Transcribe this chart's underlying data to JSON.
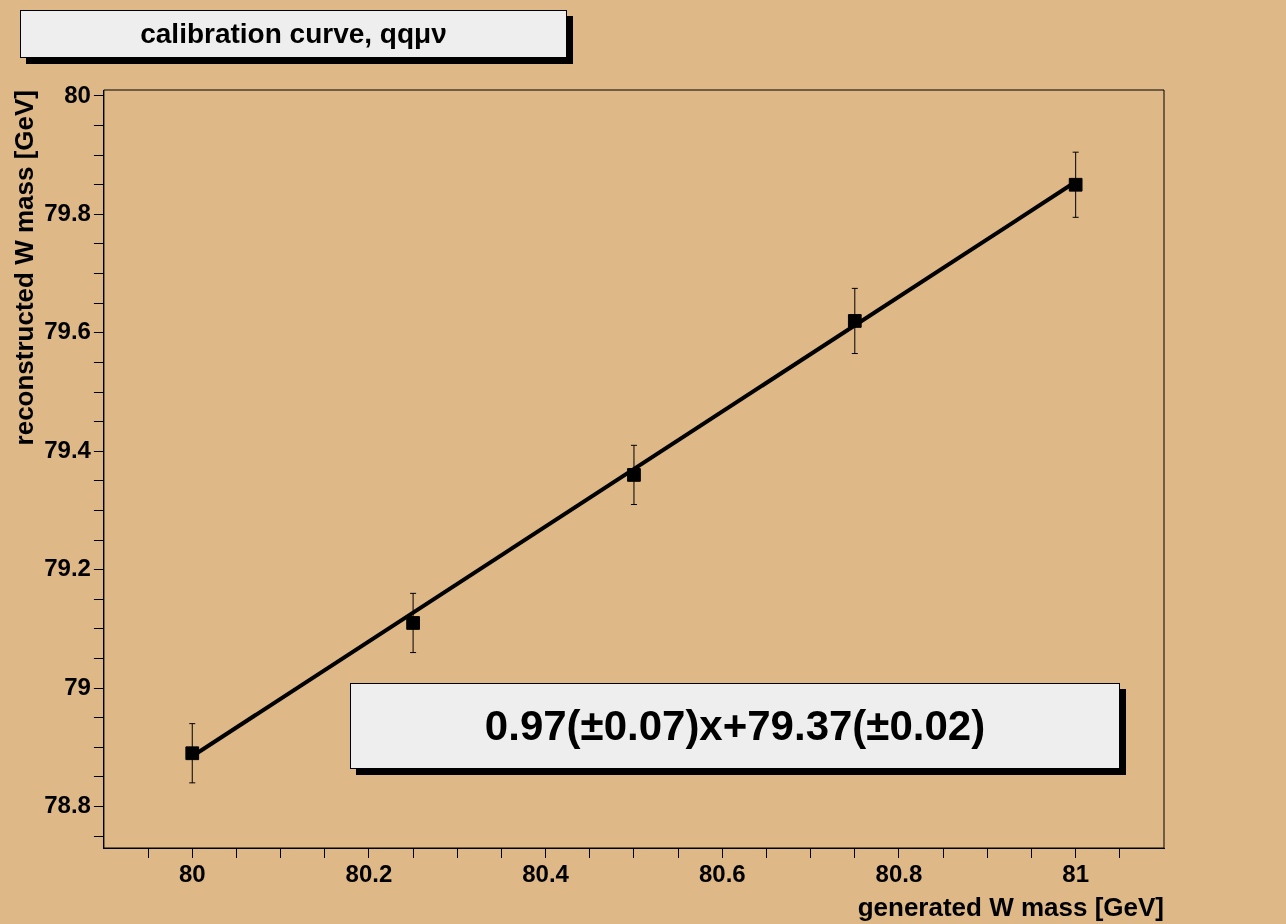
{
  "chart_data": {
    "type": "scatter",
    "title": "calibration curve, qqμν",
    "xlabel": "generated W mass [GeV]",
    "ylabel": "reconstructed W mass [GeV]",
    "annotations": [
      "0.97(±0.07)x+79.37(±0.02)"
    ],
    "xlim": [
      79.9,
      81.1
    ],
    "ylim": [
      78.73,
      80.01
    ],
    "xticks": [
      {
        "value": 79.95,
        "label": null
      },
      80,
      {
        "value": 80.05,
        "label": null
      },
      {
        "value": 80.1,
        "label": null
      },
      {
        "value": 80.15,
        "label": null
      },
      80.2,
      {
        "value": 80.25,
        "label": null
      },
      {
        "value": 80.3,
        "label": null
      },
      {
        "value": 80.35,
        "label": null
      },
      80.4,
      {
        "value": 80.45,
        "label": null
      },
      {
        "value": 80.5,
        "label": null
      },
      {
        "value": 80.55,
        "label": null
      },
      80.6,
      {
        "value": 80.65,
        "label": null
      },
      {
        "value": 80.7,
        "label": null
      },
      {
        "value": 80.75,
        "label": null
      },
      80.8,
      {
        "value": 80.85,
        "label": null
      },
      {
        "value": 80.9,
        "label": null
      },
      {
        "value": 80.95,
        "label": null
      },
      81,
      {
        "value": 81.05,
        "label": null
      }
    ],
    "yticks": [
      {
        "value": 78.75,
        "label": null
      },
      78.8,
      {
        "value": 78.85,
        "label": null
      },
      {
        "value": 78.9,
        "label": null
      },
      {
        "value": 78.95,
        "label": null
      },
      79,
      {
        "value": 79.05,
        "label": null
      },
      {
        "value": 79.1,
        "label": null
      },
      {
        "value": 79.15,
        "label": null
      },
      79.2,
      {
        "value": 79.25,
        "label": null
      },
      {
        "value": 79.3,
        "label": null
      },
      {
        "value": 79.35,
        "label": null
      },
      79.4,
      {
        "value": 79.45,
        "label": null
      },
      {
        "value": 79.5,
        "label": null
      },
      {
        "value": 79.55,
        "label": null
      },
      79.6,
      {
        "value": 79.65,
        "label": null
      },
      {
        "value": 79.7,
        "label": null
      },
      {
        "value": 79.75,
        "label": null
      },
      79.8,
      {
        "value": 79.85,
        "label": null
      },
      {
        "value": 79.9,
        "label": null
      },
      {
        "value": 79.95,
        "label": null
      },
      80
    ],
    "grid": false,
    "legend": false,
    "marker": "square",
    "series": [
      {
        "color": "#000000",
        "x": [
          80,
          80.25,
          80.5,
          80.75,
          81
        ],
        "values": [
          78.89,
          79.11,
          79.36,
          79.62,
          79.85
        ],
        "errors": [
          0.05,
          0.05,
          0.05,
          0.055,
          0.055
        ]
      },
      {
        "type": "line",
        "color": "#000000",
        "x": [
          80,
          81
        ],
        "values": [
          78.885,
          79.855
        ],
        "marker": "none",
        "line_style": "solid"
      }
    ]
  }
}
